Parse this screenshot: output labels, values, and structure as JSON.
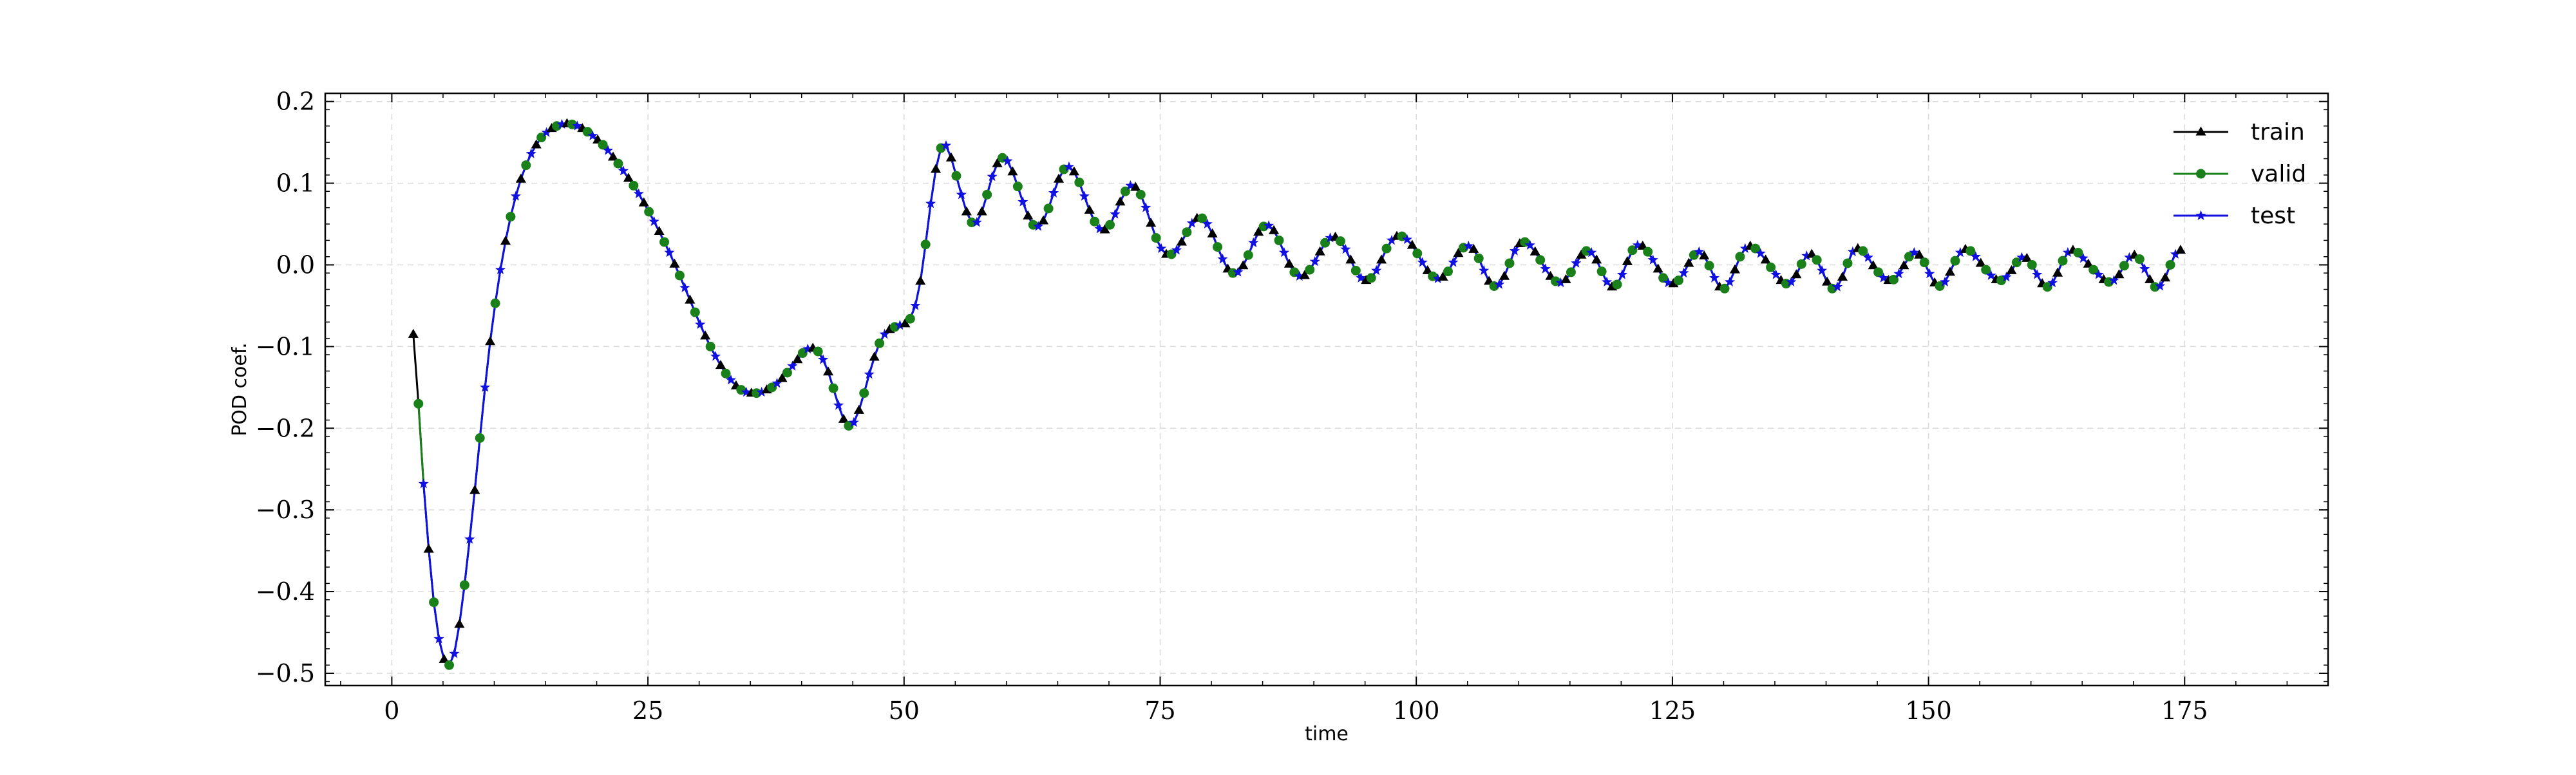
{
  "chart_data": {
    "type": "line",
    "xlabel": "time",
    "ylabel": "POD coef.",
    "xlim": [
      -6.5,
      189
    ],
    "ylim": [
      -0.515,
      0.21
    ],
    "xticks": [
      0,
      25,
      50,
      75,
      100,
      125,
      150,
      175
    ],
    "yticks": [
      0.2,
      0.1,
      0.0,
      -0.1,
      -0.2,
      -0.3,
      -0.4,
      -0.5
    ],
    "xtick_labels": [
      "0",
      "25",
      "50",
      "75",
      "100",
      "125",
      "150",
      "175"
    ],
    "ytick_labels": [
      "0.2",
      "0.1",
      "0.0",
      "−0.1",
      "−0.2",
      "−0.3",
      "−0.4",
      "−0.5"
    ],
    "grid": true,
    "legend_position": "top-right",
    "x_start": 2.1,
    "x_step": 0.5,
    "y_samples": [
      -0.085,
      -0.17,
      -0.268,
      -0.348,
      -0.413,
      -0.458,
      -0.483,
      -0.49,
      -0.476,
      -0.44,
      -0.392,
      -0.336,
      -0.276,
      -0.212,
      -0.15,
      -0.094,
      -0.047,
      -0.006,
      0.029,
      0.059,
      0.084,
      0.105,
      0.122,
      0.136,
      0.147,
      0.156,
      0.162,
      0.167,
      0.17,
      0.172,
      0.173,
      0.172,
      0.17,
      0.167,
      0.163,
      0.158,
      0.153,
      0.147,
      0.14,
      0.132,
      0.124,
      0.115,
      0.106,
      0.097,
      0.087,
      0.076,
      0.065,
      0.053,
      0.041,
      0.028,
      0.015,
      0.001,
      -0.013,
      -0.028,
      -0.043,
      -0.058,
      -0.073,
      -0.087,
      -0.1,
      -0.112,
      -0.123,
      -0.133,
      -0.141,
      -0.148,
      -0.153,
      -0.156,
      -0.157,
      -0.157,
      -0.156,
      -0.153,
      -0.15,
      -0.145,
      -0.139,
      -0.132,
      -0.124,
      -0.116,
      -0.108,
      -0.103,
      -0.102,
      -0.106,
      -0.116,
      -0.131,
      -0.151,
      -0.172,
      -0.189,
      -0.197,
      -0.193,
      -0.178,
      -0.157,
      -0.134,
      -0.113,
      -0.096,
      -0.085,
      -0.079,
      -0.076,
      -0.074,
      -0.072,
      -0.066,
      -0.05,
      -0.02,
      0.025,
      0.075,
      0.117,
      0.143,
      0.146,
      0.131,
      0.109,
      0.086,
      0.065,
      0.052,
      0.052,
      0.065,
      0.086,
      0.108,
      0.124,
      0.131,
      0.127,
      0.114,
      0.096,
      0.077,
      0.06,
      0.049,
      0.047,
      0.054,
      0.069,
      0.088,
      0.105,
      0.117,
      0.12,
      0.114,
      0.101,
      0.084,
      0.067,
      0.053,
      0.044,
      0.043,
      0.049,
      0.062,
      0.077,
      0.09,
      0.097,
      0.095,
      0.086,
      0.07,
      0.051,
      0.033,
      0.02,
      0.013,
      0.013,
      0.018,
      0.028,
      0.04,
      0.051,
      0.057,
      0.057,
      0.05,
      0.038,
      0.022,
      0.007,
      -0.005,
      -0.01,
      -0.009,
      -0.001,
      0.012,
      0.027,
      0.04,
      0.047,
      0.048,
      0.042,
      0.03,
      0.015,
      0.001,
      -0.009,
      -0.014,
      -0.013,
      -0.006,
      0.004,
      0.016,
      0.027,
      0.033,
      0.034,
      0.029,
      0.019,
      0.006,
      -0.007,
      -0.016,
      -0.019,
      -0.016,
      -0.007,
      0.006,
      0.02,
      0.03,
      0.035,
      0.035,
      0.031,
      0.024,
      0.014,
      0.003,
      -0.007,
      -0.014,
      -0.017,
      -0.015,
      -0.008,
      0.003,
      0.014,
      0.021,
      0.023,
      0.019,
      0.008,
      -0.007,
      -0.02,
      -0.026,
      -0.024,
      -0.014,
      0.002,
      0.017,
      0.026,
      0.028,
      0.024,
      0.016,
      0.006,
      -0.005,
      -0.014,
      -0.02,
      -0.022,
      -0.018,
      -0.009,
      0.002,
      0.012,
      0.017,
      0.015,
      0.006,
      -0.008,
      -0.021,
      -0.027,
      -0.024,
      -0.012,
      0.004,
      0.018,
      0.024,
      0.023,
      0.016,
      0.006,
      -0.005,
      -0.016,
      -0.022,
      -0.023,
      -0.019,
      -0.01,
      0.002,
      0.012,
      0.016,
      0.011,
      -0.001,
      -0.016,
      -0.027,
      -0.029,
      -0.021,
      -0.006,
      0.01,
      0.02,
      0.023,
      0.02,
      0.014,
      0.006,
      -0.003,
      -0.012,
      -0.019,
      -0.023,
      -0.021,
      -0.012,
      0.001,
      0.011,
      0.013,
      0.006,
      -0.007,
      -0.021,
      -0.029,
      -0.027,
      -0.015,
      0.002,
      0.016,
      0.02,
      0.017,
      0.009,
      -0.001,
      -0.009,
      -0.016,
      -0.019,
      -0.018,
      -0.011,
      -0.001,
      0.01,
      0.015,
      0.012,
      0.003,
      -0.011,
      -0.022,
      -0.026,
      -0.021,
      -0.009,
      0.005,
      0.015,
      0.019,
      0.017,
      0.01,
      0.002,
      -0.006,
      -0.013,
      -0.018,
      -0.019,
      -0.015,
      -0.007,
      0.003,
      0.009,
      0.008,
      0.0,
      -0.012,
      -0.023,
      -0.027,
      -0.022,
      -0.01,
      0.005,
      0.015,
      0.018,
      0.015,
      0.008,
      0.001,
      -0.006,
      -0.012,
      -0.018,
      -0.021,
      -0.019,
      -0.012,
      -0.001,
      0.009,
      0.012,
      0.007,
      -0.005,
      -0.018,
      -0.027,
      -0.026,
      -0.016,
      0.0,
      0.013,
      0.018
    ],
    "series": [
      {
        "name": "train",
        "color": "#000000",
        "marker": "triangle",
        "start_index": 0
      },
      {
        "name": "valid",
        "color": "#1a801a",
        "marker": "circle",
        "start_index": 1
      },
      {
        "name": "test",
        "color": "#1010e0",
        "marker": "star",
        "start_index": 2
      }
    ]
  }
}
